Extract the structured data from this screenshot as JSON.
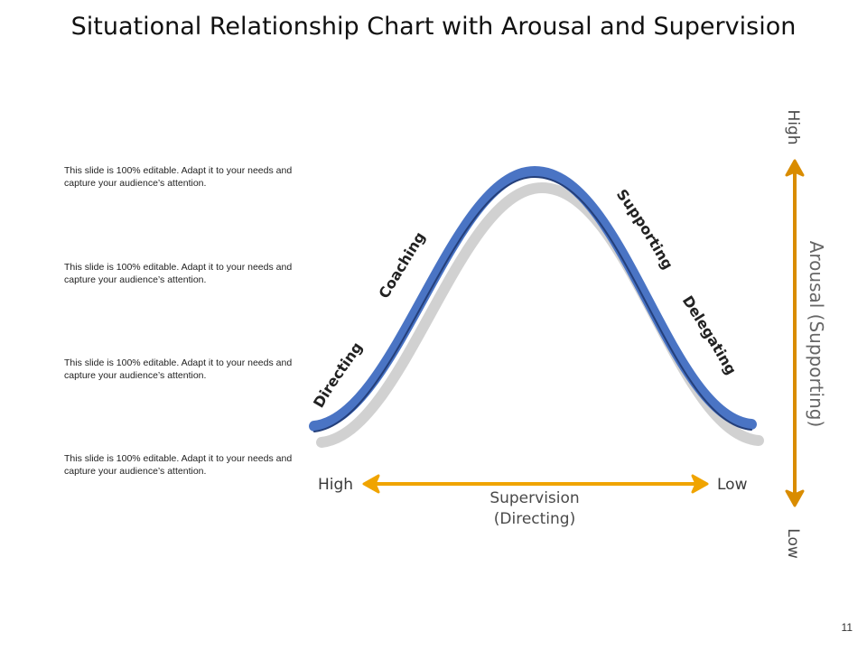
{
  "slide": {
    "title": "Situational Relationship Chart with Arousal and Supervision",
    "page_number": "11"
  },
  "notes": [
    {
      "text": "This slide is 100% editable. Adapt it to your needs and capture your audience’s attention."
    },
    {
      "text": "This slide is 100% editable. Adapt it to your needs and capture your audience’s attention."
    },
    {
      "text": "This slide is 100% editable. Adapt it to your needs and capture your audience’s attention."
    },
    {
      "text": "This slide is 100% editable. Adapt it to your needs and capture your audience’s attention."
    }
  ],
  "curve": {
    "color": "#4a74c4",
    "stages": [
      "Directing",
      "Coaching",
      "Supporting",
      "Delegating"
    ]
  },
  "horizontal_axis": {
    "left_label": "High",
    "right_label": "Low",
    "title_line1": "Supervision",
    "title_line2": "(Directing)",
    "color": "#f0a400"
  },
  "vertical_axis": {
    "top_label": "High",
    "bottom_label": "Low",
    "title": "Arousal (Supporting)",
    "color": "#d98c00"
  }
}
